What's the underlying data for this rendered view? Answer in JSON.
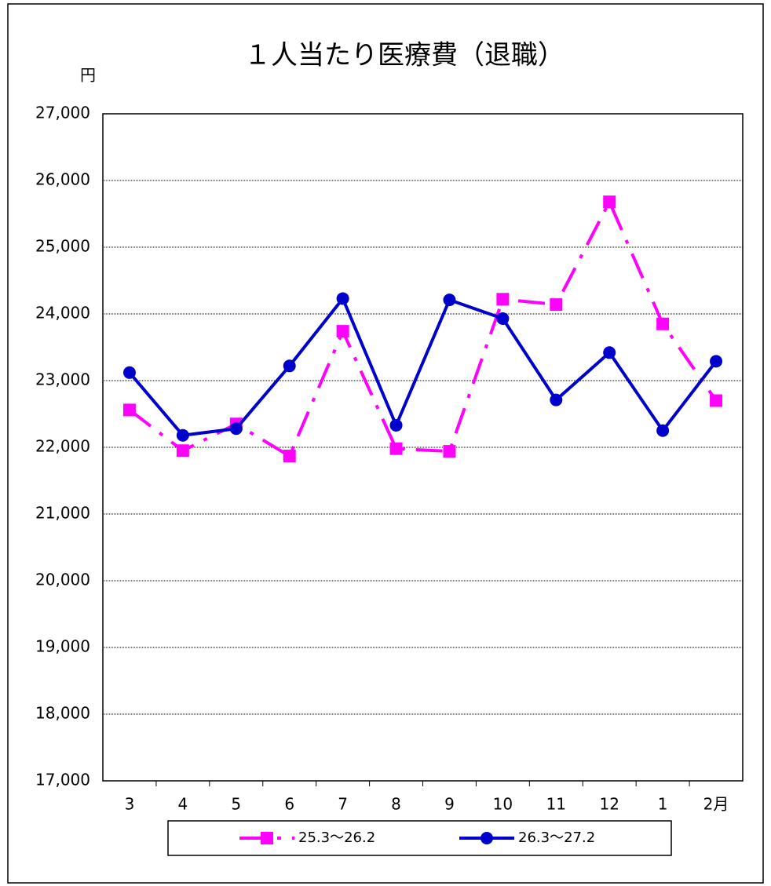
{
  "chart_data": {
    "type": "line",
    "title": "１人当たり医療費（退職）",
    "y_unit": "円",
    "categories": [
      "3",
      "4",
      "5",
      "6",
      "7",
      "8",
      "9",
      "10",
      "11",
      "12",
      "1",
      "2月"
    ],
    "series": [
      {
        "name": "25.3～26.2",
        "color": "#ff00ff",
        "marker": "square",
        "dash": true,
        "values": [
          22560,
          21950,
          22350,
          21870,
          23740,
          21980,
          21940,
          24220,
          24140,
          25680,
          23850,
          22700
        ]
      },
      {
        "name": "26.3～27.2",
        "color": "#0000cc",
        "marker": "circle",
        "dash": false,
        "values": [
          23120,
          22180,
          22280,
          23220,
          24230,
          22330,
          24210,
          23930,
          22710,
          23420,
          22250,
          23290
        ]
      }
    ],
    "ylim": [
      17000,
      27000
    ],
    "yticks": [
      {
        "value": 17000,
        "label": "17,000"
      },
      {
        "value": 18000,
        "label": "18,000"
      },
      {
        "value": 19000,
        "label": "19,000"
      },
      {
        "value": 20000,
        "label": "20,000"
      },
      {
        "value": 21000,
        "label": "21,000"
      },
      {
        "value": 22000,
        "label": "22,000"
      },
      {
        "value": 23000,
        "label": "23,000"
      },
      {
        "value": 24000,
        "label": "24,000"
      },
      {
        "value": 25000,
        "label": "25,000"
      },
      {
        "value": 26000,
        "label": "26,000"
      },
      {
        "value": 27000,
        "label": "27,000"
      }
    ],
    "grid": true,
    "legend": "bottom"
  }
}
